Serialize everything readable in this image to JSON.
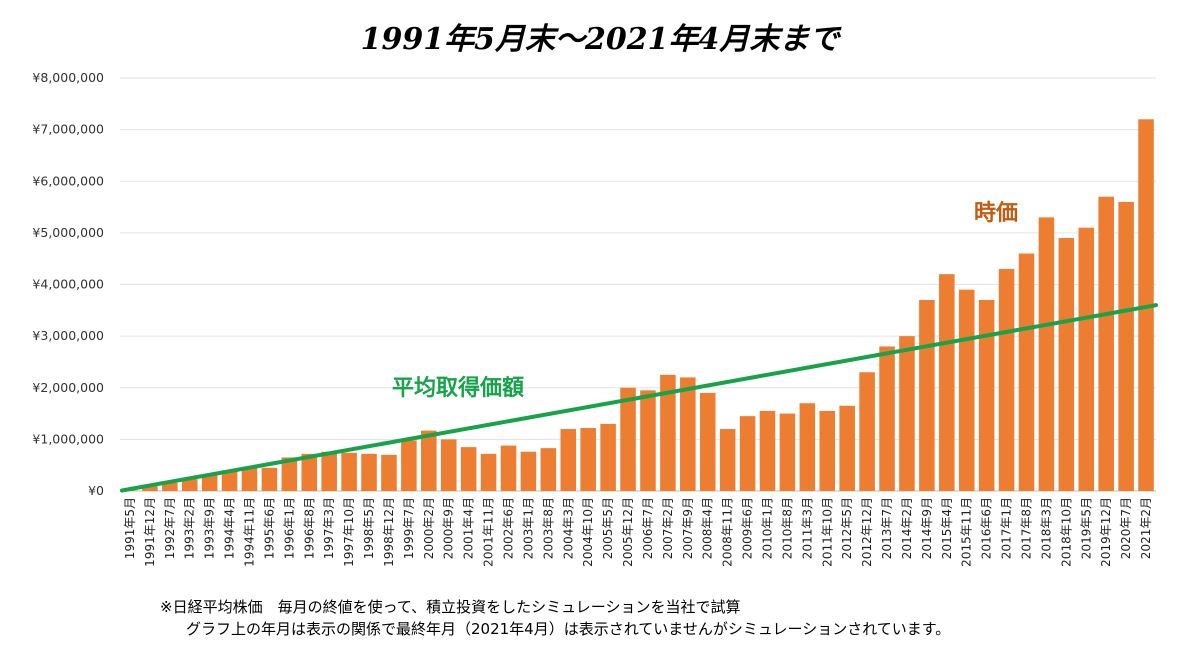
{
  "chart_data": {
    "type": "bar",
    "title": "1991年5月末～2021年4月末まで",
    "ylim": [
      0,
      8000000
    ],
    "ytick_labels": [
      "¥0",
      "¥1,000,000",
      "¥2,000,000",
      "¥3,000,000",
      "¥4,000,000",
      "¥5,000,000",
      "¥6,000,000",
      "¥7,000,000",
      "¥8,000,000"
    ],
    "ytick_values": [
      0,
      1000000,
      2000000,
      3000000,
      4000000,
      5000000,
      6000000,
      7000000,
      8000000
    ],
    "grid": true,
    "x_tick_labels": [
      "1991年5月",
      "1991年12月",
      "1992年7月",
      "1993年2月",
      "1993年9月",
      "1994年4月",
      "1994年11月",
      "1995年6月",
      "1996年1月",
      "1996年8月",
      "1997年3月",
      "1997年10月",
      "1998年5月",
      "1998年12月",
      "1999年7月",
      "2000年2月",
      "2000年9月",
      "2001年4月",
      "2001年11月",
      "2002年6月",
      "2003年1月",
      "2003年8月",
      "2004年3月",
      "2004年10月",
      "2005年5月",
      "2005年12月",
      "2006年7月",
      "2007年2月",
      "2007年9月",
      "2008年4月",
      "2008年11月",
      "2009年6月",
      "2010年1月",
      "2010年8月",
      "2011年3月",
      "2011年10月",
      "2012年5月",
      "2012年12月",
      "2013年7月",
      "2014年2月",
      "2014年9月",
      "2015年4月",
      "2015年11月",
      "2016年6月",
      "2017年1月",
      "2017年8月",
      "2018年3月",
      "2018年10月",
      "2019年5月",
      "2019年12月",
      "2020年7月",
      "2021年2月"
    ],
    "series": [
      {
        "name": "時価",
        "kind": "bar",
        "color": "#ED7D31",
        "x": [
          "1991年5月",
          "1991年12月",
          "1992年7月",
          "1993年2月",
          "1993年9月",
          "1994年4月",
          "1994年11月",
          "1995年6月",
          "1996年1月",
          "1996年8月",
          "1997年3月",
          "1997年10月",
          "1998年5月",
          "1998年12月",
          "1999年7月",
          "2000年2月",
          "2000年9月",
          "2001年4月",
          "2001年11月",
          "2002年6月",
          "2003年1月",
          "2003年8月",
          "2004年3月",
          "2004年10月",
          "2005年5月",
          "2005年12月",
          "2006年7月",
          "2007年2月",
          "2007年9月",
          "2008年4月",
          "2008年11月",
          "2009年6月",
          "2010年1月",
          "2010年8月",
          "2011年3月",
          "2011年10月",
          "2012年5月",
          "2012年12月",
          "2013年7月",
          "2014年2月",
          "2014年9月",
          "2015年4月",
          "2015年11月",
          "2016年6月",
          "2017年1月",
          "2017年8月",
          "2018年3月",
          "2018年10月",
          "2019年5月",
          "2019年12月",
          "2020年7月",
          "2021年2月"
        ],
        "values": [
          10000,
          90000,
          160000,
          230000,
          310000,
          400000,
          460000,
          450000,
          650000,
          720000,
          760000,
          740000,
          720000,
          700000,
          980000,
          1170000,
          1000000,
          850000,
          720000,
          880000,
          760000,
          830000,
          1200000,
          1220000,
          1300000,
          2000000,
          1950000,
          2250000,
          2200000,
          1900000,
          1200000,
          1450000,
          1550000,
          1500000,
          1700000,
          1550000,
          1650000,
          2300000,
          2800000,
          3000000,
          3700000,
          4200000,
          3900000,
          3700000,
          4300000,
          4600000,
          5300000,
          4900000,
          5100000,
          5700000,
          5600000,
          7200000
        ]
      },
      {
        "name": "平均取得価額",
        "kind": "line",
        "color": "#16A34A",
        "x_index": [
          0,
          359
        ],
        "values": [
          10000,
          3600000
        ]
      }
    ]
  },
  "labels": {
    "market_value": "時価",
    "avg_cost": "平均取得価額"
  },
  "notes": {
    "line1": "※日経平均株価　毎月の終値を使って、積立投資をしたシミュレーションを当社で試算",
    "line2": "グラフ上の年月は表示の関係で最終年月（2021年4月）は表示されていませんがシミュレーションされています。"
  }
}
